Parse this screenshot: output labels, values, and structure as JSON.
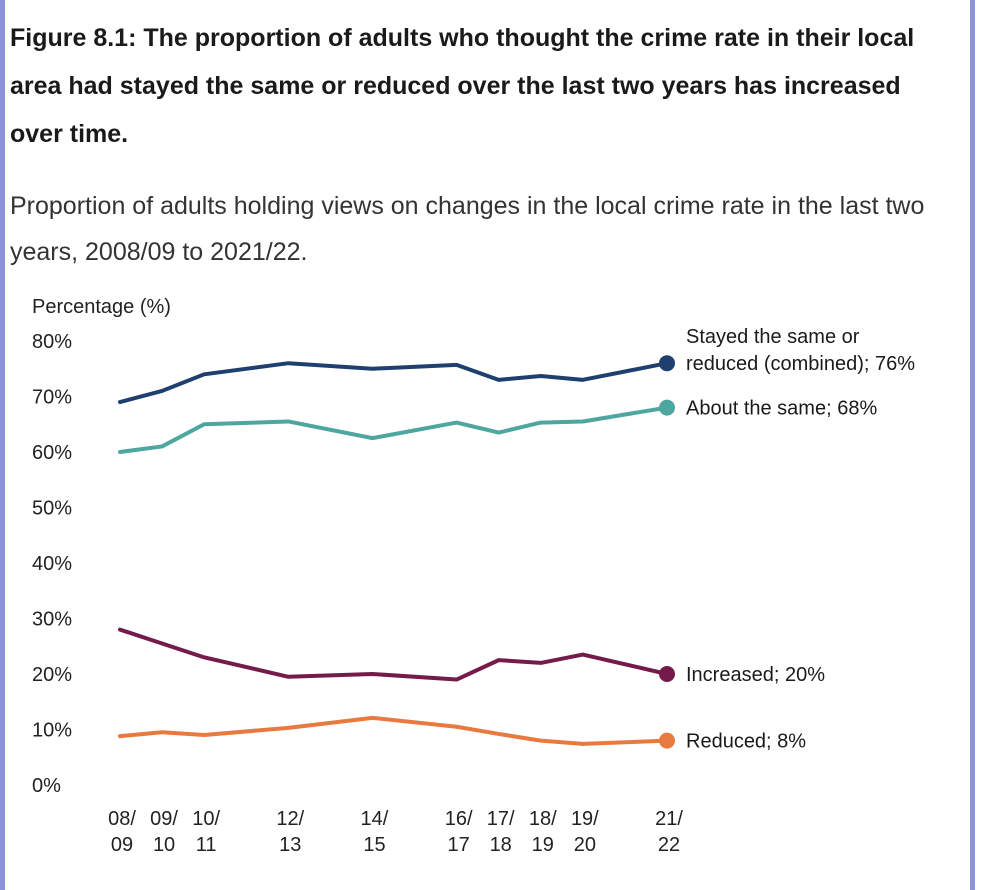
{
  "figure": {
    "title": "Figure 8.1: The proportion of adults who thought the crime rate in their local area had stayed the same or reduced over the last two years has increased over time.",
    "subtitle": "Proportion of adults holding views on changes in the local crime rate in the last two years, 2008/09 to 2021/22."
  },
  "colors": {
    "frame": "#8c93d6",
    "combined": "#1f3f6e",
    "same": "#4ea6a0",
    "increased": "#741b4c",
    "reduced": "#e8793f",
    "axis_text": "#222222"
  },
  "chart_data": {
    "type": "line",
    "title": "Proportion of adults holding views on changes in the local crime rate in the last two years, 2008/09 to 2021/22.",
    "ylabel": "Percentage (%)",
    "xlabel": "",
    "ylim": [
      0,
      80
    ],
    "yticks": [
      "0%",
      "10%",
      "20%",
      "30%",
      "40%",
      "50%",
      "60%",
      "70%",
      "80%"
    ],
    "ytick_values": [
      0,
      10,
      20,
      30,
      40,
      50,
      60,
      70,
      80
    ],
    "x": [
      2008,
      2009,
      2010,
      2012,
      2014,
      2016,
      2017,
      2018,
      2019,
      2021
    ],
    "xlim": [
      2008,
      2021
    ],
    "tick_labels": [
      {
        "top": "08/",
        "bottom": "09"
      },
      {
        "top": "09/",
        "bottom": "10"
      },
      {
        "top": "10/",
        "bottom": "11"
      },
      {
        "top": "12/",
        "bottom": "13"
      },
      {
        "top": "14/",
        "bottom": "15"
      },
      {
        "top": "16/",
        "bottom": "17"
      },
      {
        "top": "17/",
        "bottom": "18"
      },
      {
        "top": "18/",
        "bottom": "19"
      },
      {
        "top": "19/",
        "bottom": "20"
      },
      {
        "top": "21/",
        "bottom": "22"
      }
    ],
    "series": [
      {
        "key": "combined",
        "name": "Stayed the same or reduced (combined)",
        "label_lines": [
          "Stayed the same or",
          "reduced (combined); 76%"
        ],
        "values": [
          69,
          71,
          74,
          76,
          75,
          75.7,
          73,
          73.7,
          73,
          76
        ]
      },
      {
        "key": "same",
        "name": "About the same",
        "label_lines": [
          "About the same; 68%"
        ],
        "values": [
          60,
          61,
          65,
          65.5,
          62.5,
          65.3,
          63.5,
          65.3,
          65.5,
          68
        ]
      },
      {
        "key": "increased",
        "name": "Increased",
        "label_lines": [
          "Increased; 20%"
        ],
        "values": [
          28,
          25.5,
          23,
          19.5,
          20,
          19,
          22.5,
          22,
          23.5,
          20
        ]
      },
      {
        "key": "reduced",
        "name": "Reduced",
        "label_lines": [
          "Reduced; 8%"
        ],
        "values": [
          8.8,
          9.5,
          9,
          10.3,
          12.1,
          10.5,
          9.2,
          8,
          7.4,
          8
        ]
      }
    ]
  }
}
